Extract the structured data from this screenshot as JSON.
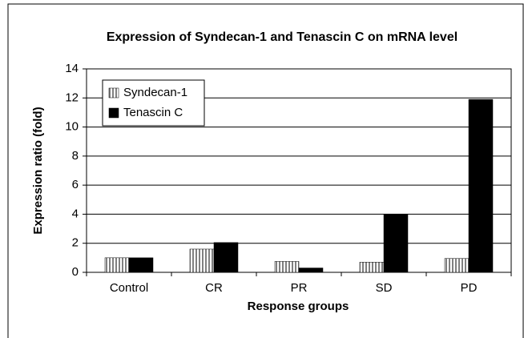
{
  "chart_data": {
    "type": "bar",
    "title": "Expression of Syndecan-1 and Tenascin C on mRNA level",
    "x_label": "Response groups",
    "y_label": "Expression ratio (fold)",
    "categories": [
      "Control",
      "CR",
      "PR",
      "SD",
      "PD"
    ],
    "series": [
      {
        "name": "Syndecan-1",
        "color": "#808080",
        "pattern": "vertical-stripes",
        "values": [
          1.0,
          1.6,
          0.75,
          0.7,
          0.95
        ]
      },
      {
        "name": "Tenascin C",
        "color": "#000000",
        "values": [
          1.0,
          2.05,
          0.3,
          4.0,
          11.9
        ]
      }
    ],
    "ylim": [
      0,
      14
    ],
    "yticks": [
      0,
      2,
      4,
      6,
      8,
      10,
      12,
      14
    ],
    "grid": true,
    "legend": "upper left"
  }
}
